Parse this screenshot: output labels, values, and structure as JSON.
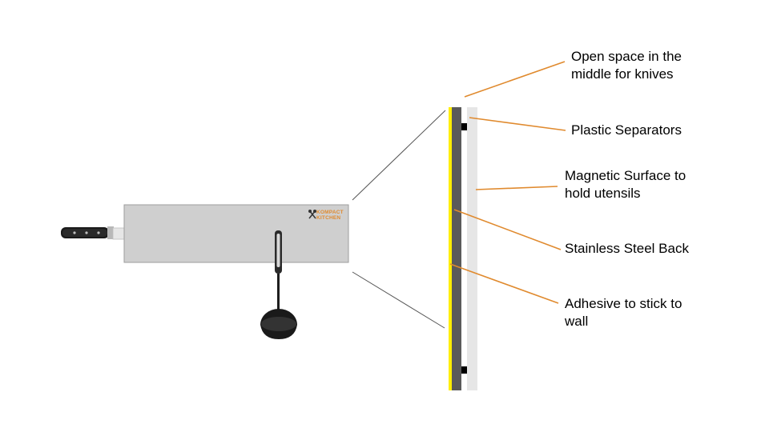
{
  "labels": {
    "open_space": [
      "Open space in the",
      "middle for knives"
    ],
    "plastic_separators": [
      "Plastic Separators"
    ],
    "magnetic_surface": [
      "Magnetic Surface to",
      "hold utensils"
    ],
    "stainless_back": [
      "Stainless Steel Back"
    ],
    "adhesive": [
      "Adhesive to stick to",
      "wall"
    ]
  },
  "logo": {
    "line1": "KOMPACT",
    "line2": "KITCHEN"
  },
  "icons": {
    "knife": "knife-icon",
    "ladle": "ladle-icon",
    "logo": "utensils-logo-icon"
  },
  "colors": {
    "leader_line": "#e08a2e",
    "adhesive_layer": "#ffee00",
    "steel_layer": "#5a5a5a",
    "magnetic_layer": "#e6e6e6",
    "rack_body": "#cfcfcf",
    "separator": "#000000"
  }
}
